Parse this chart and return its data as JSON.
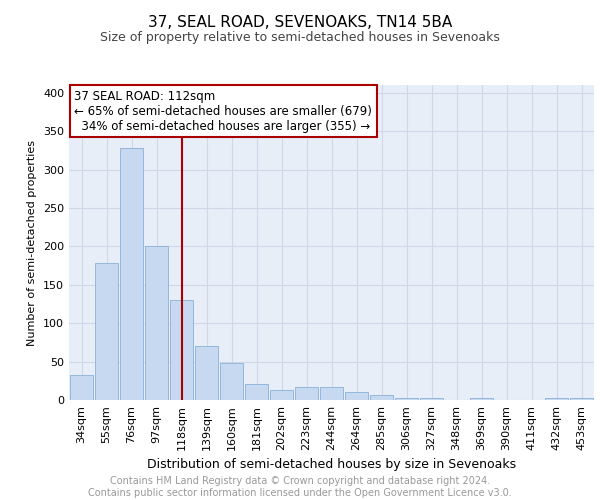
{
  "title": "37, SEAL ROAD, SEVENOAKS, TN14 5BA",
  "subtitle": "Size of property relative to semi-detached houses in Sevenoaks",
  "xlabel": "Distribution of semi-detached houses by size in Sevenoaks",
  "ylabel": "Number of semi-detached properties",
  "categories": [
    "34sqm",
    "55sqm",
    "76sqm",
    "97sqm",
    "118sqm",
    "139sqm",
    "160sqm",
    "181sqm",
    "202sqm",
    "223sqm",
    "244sqm",
    "264sqm",
    "285sqm",
    "306sqm",
    "327sqm",
    "348sqm",
    "369sqm",
    "390sqm",
    "411sqm",
    "432sqm",
    "453sqm"
  ],
  "values": [
    32,
    178,
    328,
    200,
    130,
    70,
    48,
    21,
    13,
    17,
    17,
    10,
    7,
    3,
    3,
    0,
    3,
    0,
    0,
    3,
    3
  ],
  "bar_color": "#c6d9f0",
  "bar_edge_color": "#8ab0d8",
  "vline_x": 4,
  "annotation_line1": "37 SEAL ROAD: 112sqm",
  "annotation_line2": "← 65% of semi-detached houses are smaller (679)",
  "annotation_line3": "  34% of semi-detached houses are larger (355) →",
  "annotation_box_color": "white",
  "annotation_border_color": "#aa0000",
  "vline_color": "#aa0000",
  "ylim": [
    0,
    410
  ],
  "yticks": [
    0,
    50,
    100,
    150,
    200,
    250,
    300,
    350,
    400
  ],
  "grid_color": "#d0d8e8",
  "background_color": "#e8eef8",
  "footer_text": "Contains HM Land Registry data © Crown copyright and database right 2024.\nContains public sector information licensed under the Open Government Licence v3.0.",
  "title_fontsize": 11,
  "subtitle_fontsize": 9,
  "xlabel_fontsize": 9,
  "ylabel_fontsize": 8,
  "tick_fontsize": 8,
  "footer_fontsize": 7,
  "ann_fontsize": 8.5
}
